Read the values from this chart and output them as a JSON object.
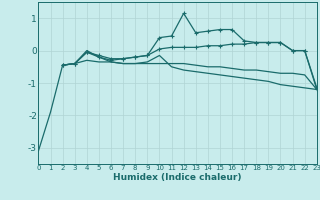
{
  "xlabel": "Humidex (Indice chaleur)",
  "background_color": "#c8ecec",
  "grid_color": "#b0d4d4",
  "line_color": "#1a6b6b",
  "xlim": [
    0,
    23
  ],
  "ylim": [
    -3.5,
    1.5
  ],
  "xtick_vals": [
    0,
    1,
    2,
    3,
    4,
    5,
    6,
    7,
    8,
    9,
    10,
    11,
    12,
    13,
    14,
    15,
    16,
    17,
    18,
    19,
    20,
    21,
    22,
    23
  ],
  "ytick_vals": [
    -3,
    -2,
    -1,
    0,
    1
  ],
  "series": [
    {
      "x": [
        0,
        1,
        2,
        3,
        4,
        5,
        6,
        7,
        8,
        9,
        10,
        11,
        12,
        13,
        14,
        15,
        16,
        17,
        18,
        19,
        20,
        21,
        22,
        23
      ],
      "y": [
        -3.1,
        -1.9,
        -0.45,
        -0.4,
        -0.3,
        -0.35,
        -0.35,
        -0.4,
        -0.4,
        -0.4,
        -0.4,
        -0.4,
        -0.4,
        -0.45,
        -0.5,
        -0.5,
        -0.55,
        -0.6,
        -0.6,
        -0.65,
        -0.7,
        -0.7,
        -0.75,
        -1.2
      ],
      "marker": false,
      "markersize": 0
    },
    {
      "x": [
        2,
        3,
        4,
        5,
        6,
        7,
        8,
        9,
        10,
        11,
        12,
        13,
        14,
        15,
        16,
        17,
        18,
        19,
        20,
        21,
        22,
        23
      ],
      "y": [
        -0.45,
        -0.4,
        -0.05,
        -0.2,
        -0.3,
        -0.25,
        -0.2,
        -0.15,
        0.05,
        0.1,
        0.1,
        0.1,
        0.15,
        0.15,
        0.2,
        0.2,
        0.25,
        0.25,
        0.25,
        0.0,
        0.0,
        -1.2
      ],
      "marker": true,
      "markersize": 2.5
    },
    {
      "x": [
        2,
        3,
        4,
        5,
        6,
        7,
        8,
        9,
        10,
        11,
        12,
        13,
        14,
        15,
        16,
        17,
        18,
        19,
        20,
        21,
        22,
        23
      ],
      "y": [
        -0.45,
        -0.4,
        -0.05,
        -0.15,
        -0.25,
        -0.25,
        -0.2,
        -0.15,
        0.4,
        0.45,
        1.15,
        0.55,
        0.6,
        0.65,
        0.65,
        0.3,
        0.25,
        0.25,
        0.25,
        0.0,
        0.0,
        -1.15
      ],
      "marker": true,
      "markersize": 2.5
    },
    {
      "x": [
        2,
        3,
        4,
        5,
        6,
        7,
        8,
        9,
        10,
        11,
        12,
        13,
        14,
        15,
        16,
        17,
        18,
        19,
        20,
        21,
        22,
        23
      ],
      "y": [
        -0.45,
        -0.4,
        -0.0,
        -0.2,
        -0.35,
        -0.4,
        -0.4,
        -0.35,
        -0.15,
        -0.5,
        -0.6,
        -0.65,
        -0.7,
        -0.75,
        -0.8,
        -0.85,
        -0.9,
        -0.95,
        -1.05,
        -1.1,
        -1.15,
        -1.2
      ],
      "marker": false,
      "markersize": 0
    }
  ]
}
